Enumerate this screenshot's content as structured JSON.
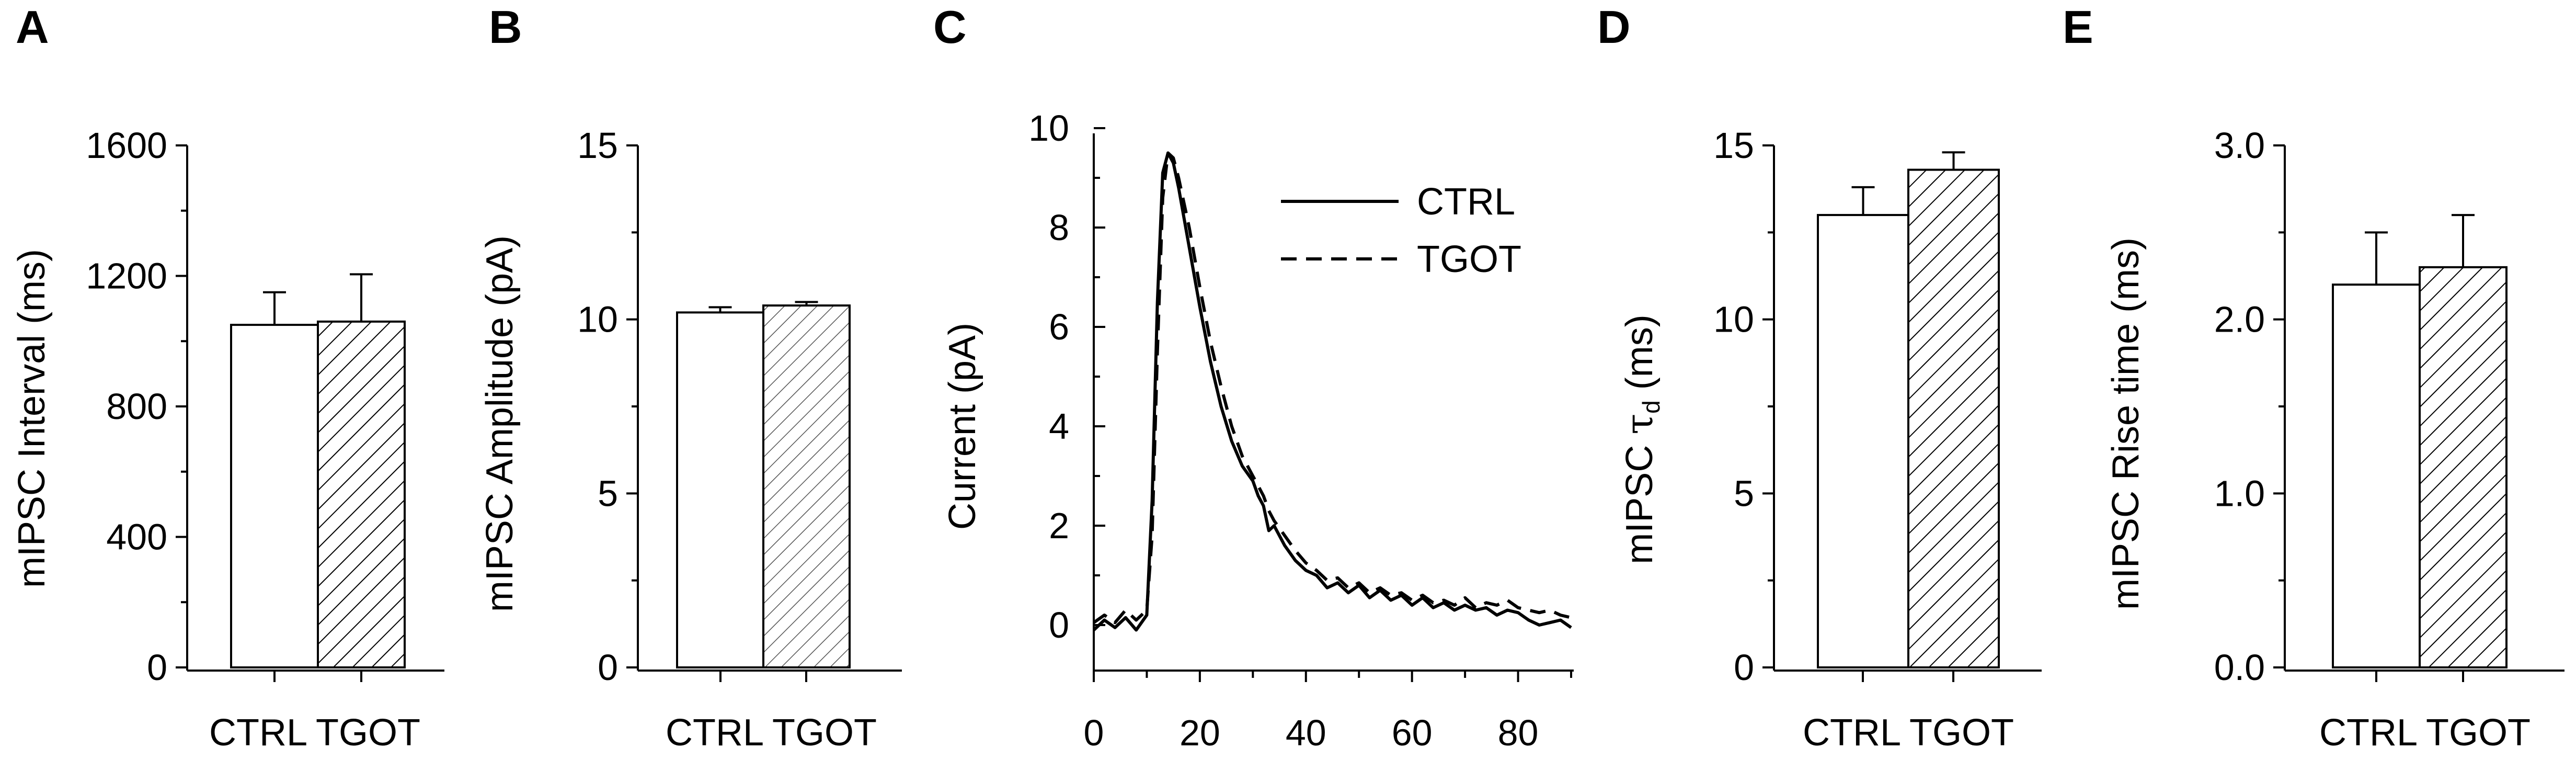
{
  "figure": {
    "panels": [
      "A",
      "B",
      "C",
      "D",
      "E"
    ]
  },
  "colors": {
    "ink": "#000000",
    "background": "#ffffff",
    "ctrl_fill": "#ffffff",
    "tgot_hatch": "#000000"
  },
  "chart_data": [
    {
      "panel": "A",
      "type": "bar",
      "ylabel": "mIPSC Interval (ms)",
      "ylim": [
        0,
        1600
      ],
      "yticks": [
        0,
        400,
        800,
        1200,
        1600
      ],
      "ytick_labels": [
        "0",
        "400",
        "800",
        "1200",
        "1600"
      ],
      "minor_y": [
        200,
        600,
        1000,
        1400
      ],
      "categories": [
        "CTRL",
        "TGOT"
      ],
      "category_text": "CTRL TGOT",
      "values": [
        1050,
        1060
      ],
      "errors": [
        100,
        145
      ],
      "fills": [
        "white",
        "hatch"
      ]
    },
    {
      "panel": "B",
      "type": "bar",
      "ylabel": "mIPSC Amplitude (pA)",
      "ylim": [
        0,
        15
      ],
      "yticks": [
        0,
        5,
        10,
        15
      ],
      "ytick_labels": [
        "0",
        "5",
        "10",
        "15"
      ],
      "minor_y": [
        2.5,
        7.5,
        12.5
      ],
      "categories": [
        "CTRL",
        "TGOT"
      ],
      "category_text": "CTRL TGOT",
      "values": [
        10.2,
        10.4
      ],
      "errors": [
        0.15,
        0.1
      ],
      "fills": [
        "white",
        "hatch"
      ]
    },
    {
      "panel": "C",
      "type": "line",
      "ylabel": "Current (pA)",
      "xlim": [
        0,
        90
      ],
      "ylim": [
        -1,
        10
      ],
      "yticks": [
        0,
        2,
        4,
        6,
        8,
        10
      ],
      "ytick_labels": [
        "0",
        "2",
        "4",
        "6",
        "8",
        "10"
      ],
      "minor_y": [
        1,
        3,
        5,
        7,
        9
      ],
      "xticks": [
        0,
        20,
        40,
        60,
        80
      ],
      "xtick_labels": [
        "0",
        "20",
        "40",
        "60",
        "80"
      ],
      "minor_x": [
        10,
        30,
        50,
        70,
        90
      ],
      "legend": [
        "CTRL",
        "TGOT"
      ],
      "legend_loc": "top-right",
      "series": [
        {
          "name": "CTRL",
          "style": "solid",
          "x": [
            0,
            2,
            4,
            6,
            8,
            10,
            11,
            12,
            13,
            14,
            15,
            16,
            18,
            20,
            22,
            24,
            26,
            28,
            30,
            31,
            32,
            33,
            34,
            36,
            38,
            40,
            42,
            44,
            46,
            48,
            50,
            52,
            54,
            56,
            58,
            60,
            62,
            64,
            66,
            68,
            70,
            72,
            74,
            76,
            78,
            80,
            82,
            84,
            86,
            88,
            90
          ],
          "y": [
            -0.1,
            0.1,
            -0.05,
            0.15,
            -0.1,
            0.2,
            2.5,
            6.5,
            9.1,
            9.5,
            9.3,
            8.8,
            7.6,
            6.4,
            5.3,
            4.4,
            3.7,
            3.2,
            2.9,
            2.6,
            2.4,
            1.9,
            2.0,
            1.6,
            1.3,
            1.1,
            1.0,
            0.75,
            0.85,
            0.65,
            0.8,
            0.55,
            0.7,
            0.5,
            0.6,
            0.4,
            0.55,
            0.35,
            0.45,
            0.3,
            0.4,
            0.3,
            0.35,
            0.2,
            0.3,
            0.25,
            0.1,
            0.0,
            0.05,
            0.1,
            -0.05
          ]
        },
        {
          "name": "TGOT",
          "style": "dashed",
          "x": [
            0,
            2,
            4,
            6,
            8,
            10,
            11,
            12,
            13,
            14,
            15,
            16,
            18,
            20,
            22,
            24,
            26,
            28,
            30,
            31,
            32,
            33,
            34,
            36,
            38,
            40,
            42,
            44,
            46,
            48,
            50,
            52,
            54,
            56,
            58,
            60,
            62,
            64,
            66,
            68,
            70,
            72,
            74,
            76,
            78,
            80,
            82,
            84,
            86,
            88,
            90
          ],
          "y": [
            0.05,
            0.2,
            0.05,
            0.3,
            0.1,
            0.3,
            1.8,
            5.5,
            8.6,
            9.5,
            9.4,
            9.0,
            8.0,
            6.8,
            5.7,
            4.8,
            4.0,
            3.4,
            3.0,
            2.8,
            2.6,
            2.3,
            2.1,
            1.8,
            1.5,
            1.25,
            1.1,
            0.9,
            0.95,
            0.75,
            0.85,
            0.65,
            0.75,
            0.6,
            0.65,
            0.5,
            0.6,
            0.45,
            0.5,
            0.4,
            0.55,
            0.35,
            0.45,
            0.4,
            0.5,
            0.35,
            0.3,
            0.25,
            0.3,
            0.2,
            0.15
          ]
        }
      ]
    },
    {
      "panel": "D",
      "type": "bar",
      "ylabel_main": "mIPSC ",
      "ylabel_tau": "τ",
      "ylabel_sub": "d",
      "ylabel_unit": " (ms)",
      "ylim": [
        0,
        15
      ],
      "yticks": [
        0,
        5,
        10,
        15
      ],
      "ytick_labels": [
        "0",
        "5",
        "10",
        "15"
      ],
      "minor_y": [
        2.5,
        7.5,
        12.5
      ],
      "categories": [
        "CTRL",
        "TGOT"
      ],
      "category_text": "CTRL TGOT",
      "values": [
        13.0,
        14.3
      ],
      "errors": [
        0.8,
        0.5
      ],
      "fills": [
        "white",
        "hatch"
      ]
    },
    {
      "panel": "E",
      "type": "bar",
      "ylabel": "mIPSC Rise time (ms)",
      "ylim": [
        0,
        3.0
      ],
      "yticks": [
        0,
        1.0,
        2.0,
        3.0
      ],
      "ytick_labels": [
        "0.0",
        "1.0",
        "2.0",
        "3.0"
      ],
      "minor_y": [
        0.5,
        1.5,
        2.5
      ],
      "categories": [
        "CTRL",
        "TGOT"
      ],
      "category_text": "CTRL TGOT",
      "values": [
        2.2,
        2.3
      ],
      "errors": [
        0.3,
        0.3
      ],
      "fills": [
        "white",
        "hatch"
      ]
    }
  ]
}
